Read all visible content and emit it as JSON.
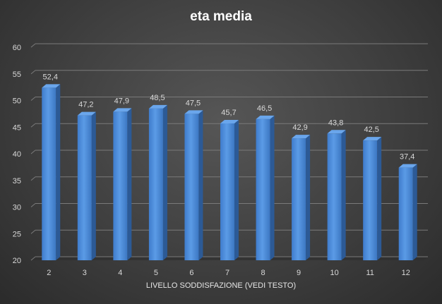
{
  "chart_data": {
    "type": "bar",
    "title": "eta media",
    "xlabel": "LIVELLO SODDISFAZIONE (VEDI TESTO)",
    "ylabel": "",
    "categories": [
      "2",
      "3",
      "4",
      "5",
      "6",
      "7",
      "8",
      "9",
      "10",
      "11",
      "12"
    ],
    "values": [
      52.4,
      47.2,
      47.9,
      48.5,
      47.5,
      45.7,
      46.5,
      42.9,
      43.8,
      42.5,
      37.4
    ],
    "data_labels": [
      "52,4",
      "47,2",
      "47,9",
      "48,5",
      "47,5",
      "45,7",
      "46,5",
      "42,9",
      "43,8",
      "42,5",
      "37,4"
    ],
    "ylim": [
      20,
      60
    ],
    "yticks": [
      "20",
      "25",
      "30",
      "35",
      "40",
      "45",
      "50",
      "55",
      "60"
    ],
    "grid": true,
    "legend": "none",
    "bar_color": "#4f8fd9"
  }
}
